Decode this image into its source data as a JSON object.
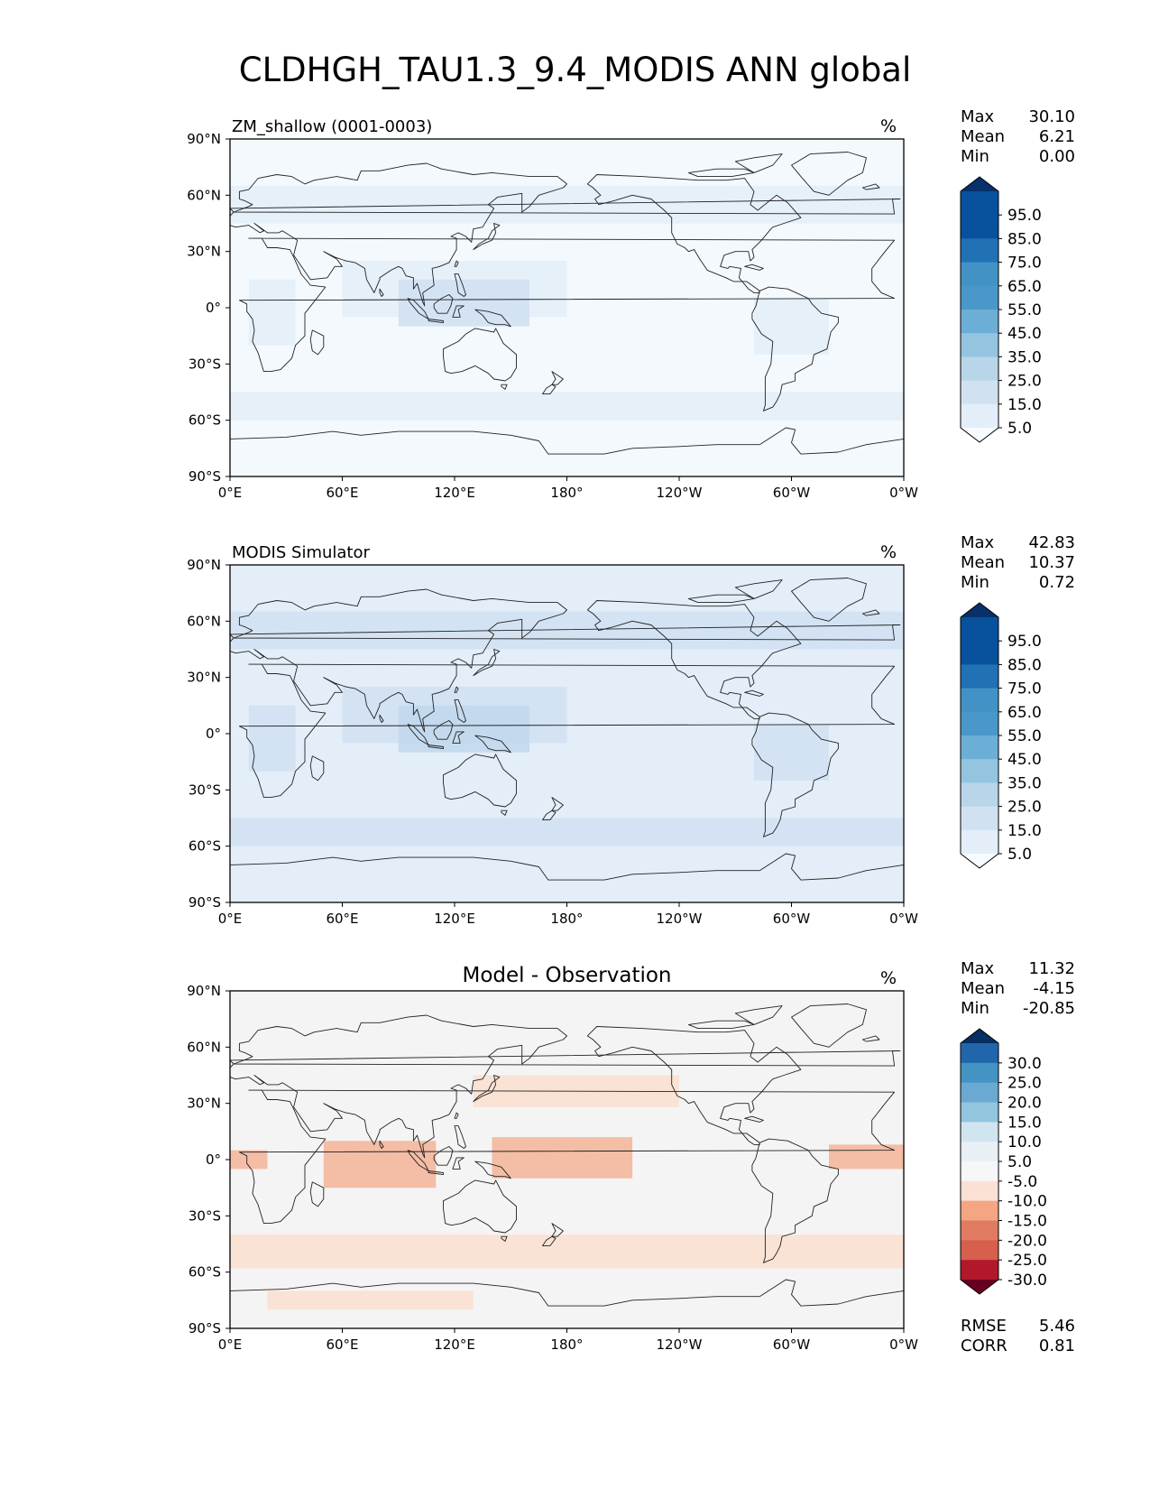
{
  "title": "CLDHGH_TAU1.3_9.4_MODIS ANN global",
  "chart_data": [
    {
      "type": "heatmap",
      "title": "ZM_shallow (0001-0003)",
      "units": "%",
      "stats": [
        {
          "label": "Max",
          "value": "30.10"
        },
        {
          "label": "Mean",
          "value": "6.21"
        },
        {
          "label": "Min",
          "value": "0.00"
        }
      ],
      "colorbar": {
        "labels": [
          "95.0",
          "85.0",
          "75.0",
          "65.0",
          "55.0",
          "45.0",
          "35.0",
          "25.0",
          "15.0",
          "5.0"
        ],
        "colors": [
          "#08306b",
          "#08519c",
          "#2171b5",
          "#4292c6",
          "#6baed6",
          "#9ecae1",
          "#c6dbef",
          "#deebf7",
          "#f7fbff",
          "#ffffff"
        ],
        "colors_fill": [
          "#08306b",
          "#08519c",
          "#08519c",
          "#2171b5",
          "#4292c6",
          "#4a98c9",
          "#6baed6",
          "#94c4df",
          "#b8d5ea",
          "#d0e1f2",
          "#e3eef8",
          "#f7fbff"
        ]
      },
      "xticks": [
        "0°E",
        "60°E",
        "120°E",
        "180°",
        "120°W",
        "60°W",
        "0°W"
      ],
      "yticks": [
        "90°N",
        "60°N",
        "30°N",
        "0°",
        "30°S",
        "60°S",
        "90°S"
      ],
      "field_colors": {
        "background": "#f4f9fe",
        "band": "#e3eef8",
        "core": "#d0e1f2"
      }
    },
    {
      "type": "heatmap",
      "title": "MODIS Simulator",
      "units": "%",
      "stats": [
        {
          "label": "Max",
          "value": "42.83"
        },
        {
          "label": "Mean",
          "value": "10.37"
        },
        {
          "label": "Min",
          "value": "0.72"
        }
      ],
      "colorbar": {
        "labels": [
          "95.0",
          "85.0",
          "75.0",
          "65.0",
          "55.0",
          "45.0",
          "35.0",
          "25.0",
          "15.0",
          "5.0"
        ],
        "colors_fill": [
          "#08306b",
          "#08519c",
          "#08519c",
          "#2171b5",
          "#4292c6",
          "#4a98c9",
          "#6baed6",
          "#94c4df",
          "#b8d5ea",
          "#d0e1f2",
          "#e3eef8",
          "#f7fbff"
        ]
      },
      "xticks": [
        "0°E",
        "60°E",
        "120°E",
        "180°",
        "120°W",
        "60°W",
        "0°W"
      ],
      "yticks": [
        "90°N",
        "60°N",
        "30°N",
        "0°",
        "30°S",
        "60°S",
        "90°S"
      ],
      "field_colors": {
        "background": "#e3eef8",
        "band": "#d0e1f2",
        "core": "#c1d8ed"
      }
    },
    {
      "type": "heatmap",
      "title": "Model - Observation",
      "units": "%",
      "stats": [
        {
          "label": "Max",
          "value": "11.32"
        },
        {
          "label": "Mean",
          "value": "-4.15"
        },
        {
          "label": "Min",
          "value": "-20.85"
        }
      ],
      "colorbar": {
        "labels": [
          "30.0",
          "25.0",
          "20.0",
          "15.0",
          "10.0",
          "5.0",
          "-5.0",
          "-10.0",
          "-15.0",
          "-20.0",
          "-25.0",
          "-30.0"
        ],
        "colors_fill": [
          "#053061",
          "#2166ac",
          "#4393c3",
          "#6aa9d2",
          "#92c5de",
          "#d1e5f0",
          "#e8f0f5",
          "#f7f7f7",
          "#fbe1d4",
          "#f4a582",
          "#e07b62",
          "#d6604d",
          "#b2182b",
          "#67001f"
        ]
      },
      "xticks": [
        "0°E",
        "60°E",
        "120°E",
        "180°",
        "120°W",
        "60°W",
        "0°W"
      ],
      "yticks": [
        "90°N",
        "60°N",
        "30°N",
        "0°",
        "30°S",
        "60°S",
        "90°S"
      ],
      "metrics": [
        {
          "label": "RMSE",
          "value": "5.46"
        },
        {
          "label": "CORR",
          "value": "0.81"
        }
      ],
      "field_colors": {
        "background": "#f4f4f4",
        "band": "#fbe0d2",
        "core": "#f4b79c"
      }
    }
  ]
}
